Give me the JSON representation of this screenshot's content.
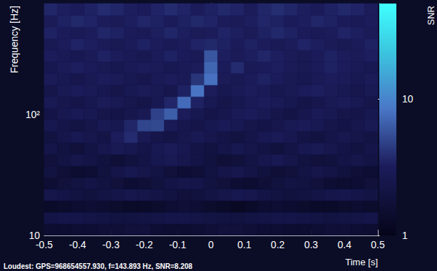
{
  "chart_data": {
    "type": "heatmap",
    "annotation": "Loudest: GPS=968654557.930, f=143.893 Hz, SNR=8.208",
    "x_label": "Time [s]",
    "y_label": "Frequency [Hz]",
    "log": "y",
    "xlim": [
      -0.5,
      0.5
    ],
    "xticks": [
      -0.5,
      -0.4,
      -0.3,
      -0.2,
      -0.1,
      0,
      0.1,
      0.2,
      0.3,
      0.4,
      0.5
    ],
    "ylim": [
      10,
      830
    ],
    "yticks": [
      10,
      {
        "value": 100,
        "label": "10²"
      }
    ],
    "t_edges": [
      -0.5,
      -0.46,
      -0.42,
      -0.38,
      -0.34,
      -0.3,
      -0.26,
      -0.22,
      -0.18,
      -0.14,
      -0.1,
      -0.06,
      -0.02,
      0.02,
      0.06,
      0.1,
      0.14,
      0.18,
      0.22,
      0.26,
      0.3,
      0.34,
      0.38,
      0.42,
      0.46,
      0.5
    ],
    "f_edges": [
      10,
      12.5,
      15.6,
      19.4,
      24.2,
      30.2,
      37.6,
      46.9,
      58.5,
      73,
      91,
      113,
      141,
      176,
      220,
      274,
      342,
      426,
      531,
      663,
      830
    ],
    "snr": [
      [
        1.5,
        1.5,
        1.6,
        1.6,
        1.7,
        1.7,
        1.8,
        1.8,
        1.6,
        1.5,
        1.5,
        1.6,
        1.7,
        1.8,
        1.8,
        1.7,
        1.6,
        1.6,
        1.5,
        1.5,
        1.6,
        1.7,
        1.7,
        1.6,
        1.5
      ],
      [
        2.2,
        2.3,
        2.3,
        2.2,
        2.1,
        2.0,
        2.0,
        2.1,
        2.2,
        2.3,
        2.3,
        2.2,
        2.1,
        2.0,
        2.0,
        2.1,
        2.2,
        2.3,
        2.3,
        2.2,
        2.1,
        2.0,
        2.1,
        2.2,
        2.3
      ],
      [
        1.3,
        1.4,
        1.5,
        1.6,
        1.5,
        1.4,
        1.3,
        1.3,
        1.4,
        1.6,
        1.7,
        1.6,
        1.4,
        1.3,
        1.2,
        1.3,
        1.5,
        1.6,
        1.5,
        1.4,
        1.3,
        1.3,
        1.4,
        1.5,
        1.4
      ],
      [
        2.4,
        2.2,
        2.0,
        1.9,
        2.1,
        2.3,
        2.5,
        2.4,
        2.2,
        2.0,
        1.8,
        1.9,
        2.1,
        2.4,
        2.6,
        2.5,
        2.2,
        2.0,
        1.9,
        2.0,
        2.2,
        2.4,
        2.5,
        2.3,
        2.1
      ],
      [
        1.6,
        1.8,
        2.0,
        2.2,
        2.0,
        1.8,
        1.6,
        1.7,
        1.9,
        2.2,
        2.4,
        2.3,
        2.0,
        1.8,
        1.6,
        1.5,
        1.7,
        1.9,
        2.1,
        2.0,
        1.8,
        1.6,
        1.5,
        1.6,
        1.8
      ],
      [
        2.0,
        1.7,
        1.5,
        1.6,
        1.9,
        2.3,
        2.6,
        2.4,
        2.1,
        1.8,
        1.6,
        1.7,
        2.0,
        2.3,
        2.5,
        2.2,
        1.9,
        1.7,
        1.8,
        2.1,
        2.4,
        2.2,
        1.9,
        1.7,
        1.6
      ],
      [
        1.8,
        2.1,
        2.4,
        2.2,
        1.9,
        1.7,
        1.9,
        2.2,
        2.6,
        2.8,
        2.5,
        2.2,
        1.9,
        1.7,
        1.8,
        2.1,
        2.5,
        2.7,
        2.4,
        2.0,
        1.8,
        1.9,
        2.2,
        2.4,
        2.1
      ],
      [
        2.3,
        2.0,
        1.8,
        2.1,
        2.5,
        2.8,
        2.6,
        2.3,
        2.7,
        3.0,
        2.6,
        2.2,
        2.0,
        2.3,
        2.6,
        2.4,
        2.1,
        1.9,
        2.2,
        2.6,
        2.8,
        2.5,
        2.2,
        2.0,
        2.3
      ],
      [
        2.0,
        2.4,
        2.7,
        2.5,
        2.2,
        3.2,
        3.8,
        2.8,
        2.4,
        2.2,
        2.5,
        2.8,
        2.5,
        2.2,
        2.0,
        2.3,
        2.7,
        2.9,
        2.6,
        2.2,
        2.0,
        2.3,
        2.6,
        2.4,
        2.1
      ],
      [
        2.6,
        2.3,
        2.1,
        2.4,
        2.8,
        2.6,
        3.6,
        5.0,
        5.2,
        2.9,
        2.5,
        2.3,
        2.6,
        2.9,
        2.7,
        2.4,
        2.2,
        2.5,
        2.8,
        3.0,
        2.7,
        2.4,
        2.2,
        2.5,
        2.8
      ],
      [
        2.2,
        2.6,
        2.9,
        2.7,
        2.4,
        2.2,
        2.5,
        2.8,
        4.8,
        6.5,
        3.2,
        2.6,
        2.3,
        2.5,
        2.9,
        3.1,
        2.8,
        2.4,
        2.2,
        2.5,
        2.9,
        2.7,
        2.4,
        2.3,
        2.6
      ],
      [
        2.8,
        2.5,
        2.3,
        2.6,
        3.0,
        2.8,
        2.5,
        2.3,
        2.7,
        3.6,
        7.5,
        3.4,
        2.7,
        2.4,
        2.6,
        2.9,
        3.2,
        2.9,
        2.6,
        2.3,
        2.5,
        2.8,
        3.0,
        2.7,
        2.4
      ],
      [
        2.4,
        2.8,
        3.1,
        2.9,
        2.6,
        2.4,
        2.7,
        3.0,
        2.8,
        2.5,
        3.4,
        8.2,
        3.2,
        2.6,
        2.9,
        3.2,
        2.9,
        2.6,
        2.8,
        3.1,
        3.3,
        3.0,
        2.7,
        2.5,
        2.8
      ],
      [
        3.0,
        2.7,
        2.5,
        2.8,
        3.2,
        3.0,
        2.7,
        2.5,
        2.9,
        3.2,
        2.9,
        4.2,
        8.0,
        3.0,
        2.8,
        3.1,
        3.4,
        3.1,
        2.8,
        2.6,
        2.9,
        3.2,
        3.0,
        2.7,
        3.0
      ],
      [
        2.6,
        3.0,
        3.3,
        3.1,
        2.8,
        2.6,
        2.9,
        3.2,
        3.0,
        2.7,
        2.9,
        3.2,
        7.0,
        3.1,
        3.8,
        2.9,
        3.1,
        3.3,
        3.0,
        2.8,
        3.1,
        3.4,
        3.2,
        2.9,
        2.7
      ],
      [
        3.2,
        2.9,
        2.7,
        3.0,
        3.4,
        3.2,
        2.9,
        2.7,
        3.1,
        3.4,
        3.1,
        2.9,
        6.0,
        3.3,
        3.0,
        3.3,
        3.6,
        3.3,
        3.0,
        2.8,
        3.1,
        3.4,
        3.2,
        3.0,
        3.3
      ],
      [
        2.8,
        3.2,
        3.5,
        3.3,
        3.0,
        2.8,
        3.1,
        3.4,
        3.2,
        2.9,
        3.2,
        3.5,
        3.7,
        3.4,
        3.1,
        3.4,
        3.2,
        2.9,
        3.2,
        3.5,
        3.3,
        3.0,
        2.8,
        3.1,
        3.4
      ],
      [
        3.4,
        3.1,
        2.9,
        3.2,
        3.6,
        3.4,
        3.1,
        2.9,
        3.3,
        3.6,
        3.3,
        3.0,
        3.2,
        3.5,
        3.3,
        3.0,
        3.4,
        3.7,
        3.4,
        3.1,
        2.9,
        3.2,
        3.5,
        3.3,
        3.0
      ],
      [
        3.0,
        3.4,
        3.7,
        3.5,
        3.2,
        3.0,
        3.3,
        3.6,
        3.4,
        3.1,
        3.4,
        3.7,
        3.5,
        3.2,
        3.0,
        3.3,
        3.6,
        3.4,
        3.1,
        3.3,
        3.6,
        3.4,
        3.1,
        2.9,
        3.2
      ],
      [
        3.6,
        3.3,
        3.1,
        3.4,
        3.8,
        3.6,
        3.3,
        3.1,
        3.5,
        3.8,
        3.5,
        3.2,
        3.4,
        3.7,
        3.5,
        3.2,
        3.6,
        3.9,
        3.6,
        3.3,
        3.1,
        3.4,
        3.7,
        3.5,
        3.2
      ]
    ],
    "colorbar": {
      "label": "SNR",
      "lim": [
        1,
        50
      ],
      "ticks": [
        1,
        10
      ],
      "log": true
    }
  }
}
